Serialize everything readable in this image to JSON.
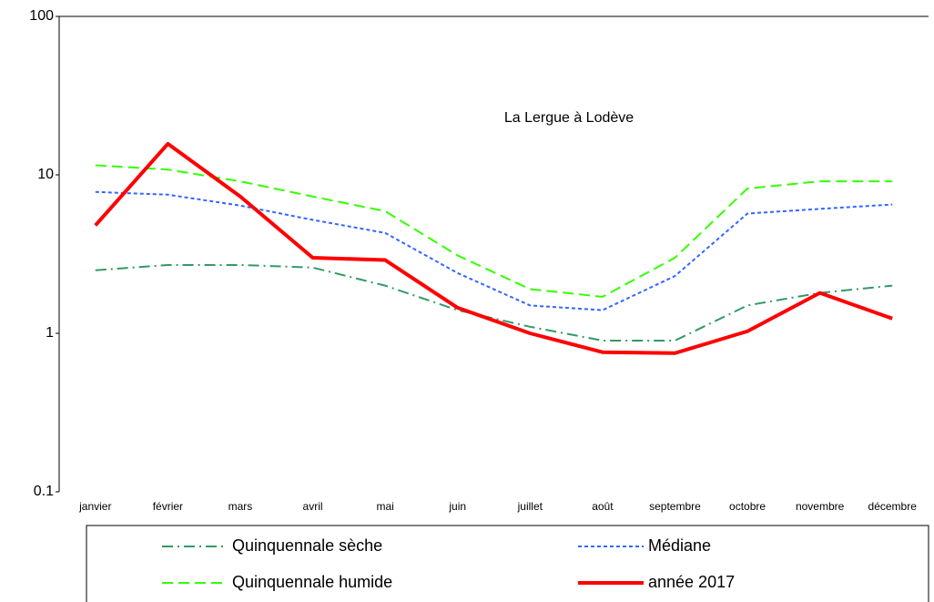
{
  "chart_data": {
    "type": "line",
    "title": "La Lergue à Lodève",
    "categories": [
      "janvier",
      "février",
      "mars",
      "avril",
      "mai",
      "juin",
      "juillet",
      "août",
      "septembre",
      "octobre",
      "novembre",
      "décembre"
    ],
    "series": [
      {
        "name": "Quinquennale sèche",
        "color": "#339966",
        "style": "dashdot",
        "values": [
          2.5,
          2.7,
          2.7,
          2.6,
          2.0,
          1.4,
          1.1,
          0.9,
          0.9,
          1.5,
          1.8,
          2.0
        ]
      },
      {
        "name": "Médiane",
        "color": "#3366ff",
        "style": "dotted",
        "values": [
          7.8,
          7.5,
          6.4,
          5.2,
          4.3,
          2.4,
          1.5,
          1.4,
          2.3,
          5.7,
          6.1,
          6.5
        ]
      },
      {
        "name": "Quinquennale humide",
        "color": "#33ff00",
        "style": "dashed",
        "values": [
          11.5,
          10.8,
          9.1,
          7.3,
          5.9,
          3.1,
          1.9,
          1.7,
          3.0,
          8.2,
          9.1,
          9.1
        ]
      },
      {
        "name": "année 2017",
        "color": "#ff0000",
        "style": "solid",
        "values": [
          4.8,
          15.7,
          7.3,
          3.0,
          2.9,
          1.45,
          1.0,
          0.76,
          0.75,
          1.03,
          1.8,
          1.24
        ]
      }
    ],
    "ylim": [
      0.1,
      100
    ],
    "yticks": [
      0.1,
      1,
      10,
      100
    ],
    "log_y": true,
    "grid": false
  }
}
